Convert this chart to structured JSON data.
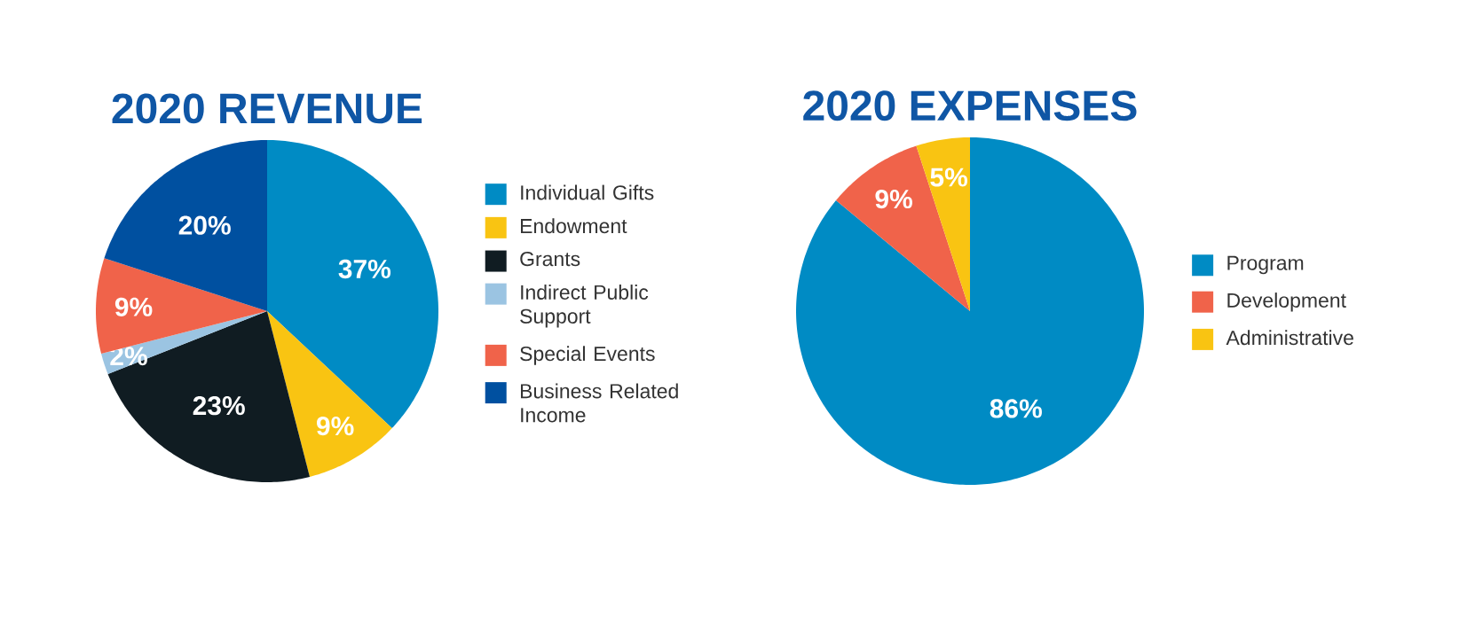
{
  "chart_data": [
    {
      "type": "pie",
      "title": "2020 REVENUE",
      "categories": [
        "Individual Gifts",
        "Endowment",
        "Grants",
        "Indirect Public Support",
        "Special Events",
        "Business Related Income"
      ],
      "values": [
        37,
        9,
        23,
        2,
        9,
        20
      ],
      "colors": [
        "#008bc4",
        "#f9c412",
        "#101c22",
        "#9bc4e2",
        "#f0634a",
        "#0050a0"
      ],
      "value_labels": [
        "37%",
        "9%",
        "23%",
        "2%",
        "9%",
        "20%"
      ],
      "legend": "right"
    },
    {
      "type": "pie",
      "title": "2020 EXPENSES",
      "categories": [
        "Program",
        "Development",
        "Administrative"
      ],
      "values": [
        86,
        9,
        5
      ],
      "colors": [
        "#008bc4",
        "#f0634a",
        "#f9c412"
      ],
      "value_labels": [
        "86%",
        "9%",
        "5%"
      ],
      "legend": "right"
    }
  ]
}
